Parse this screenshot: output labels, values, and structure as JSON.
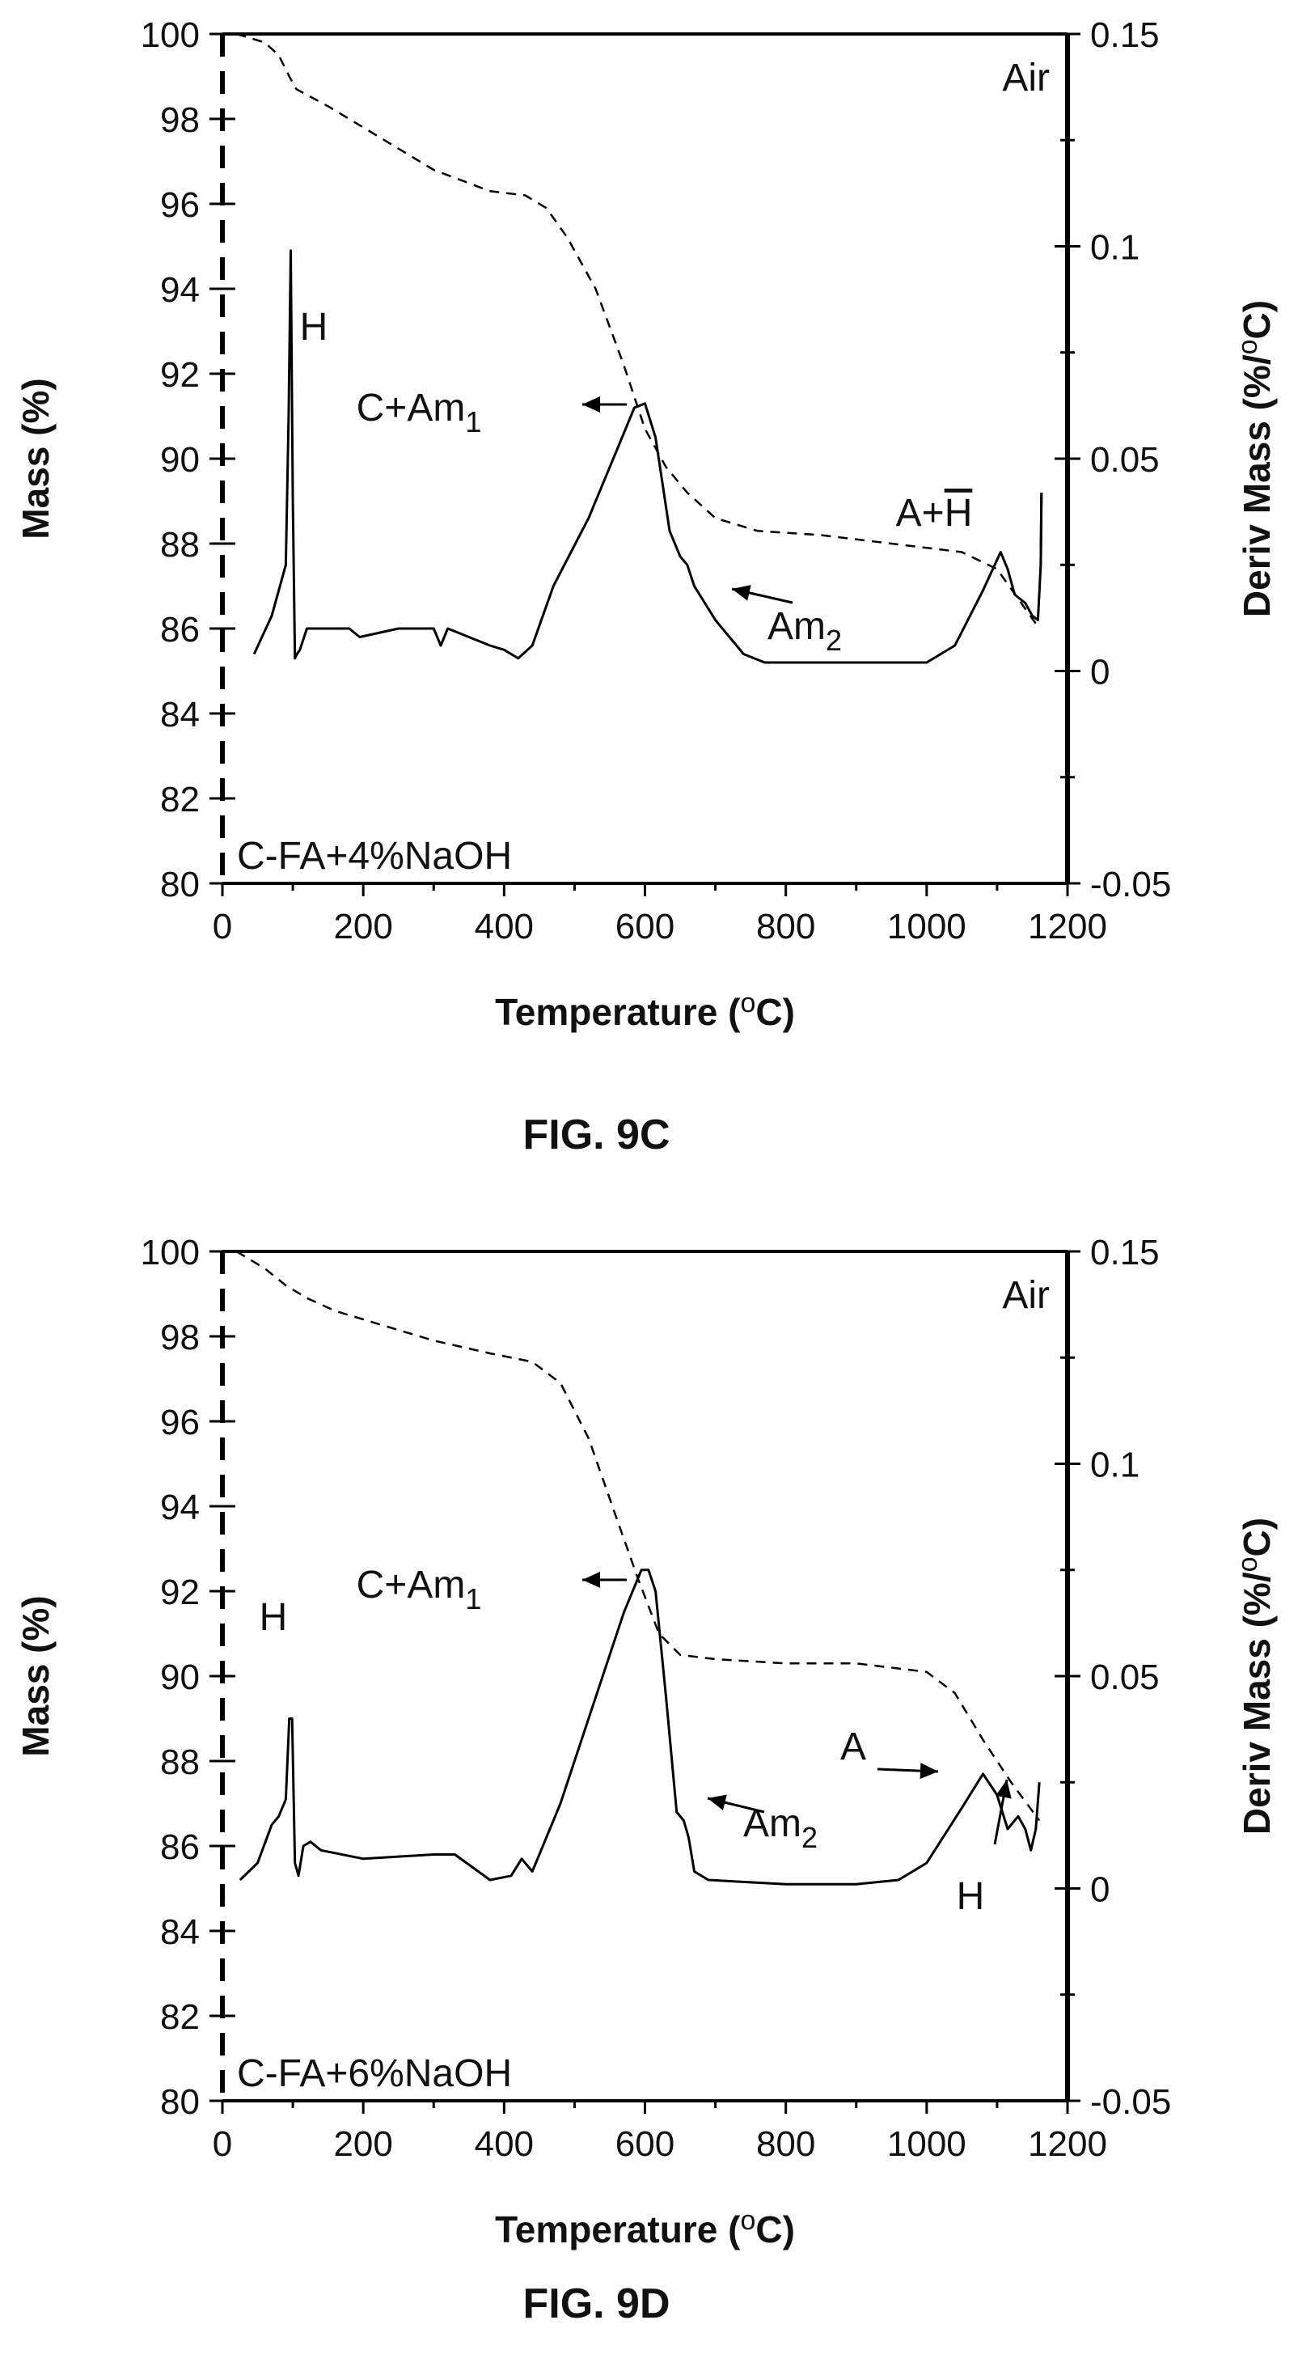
{
  "chart_data": [
    {
      "type": "line",
      "figure_label": "FIG. 9C",
      "xlabel_main": "Temperature (",
      "xlabel_sup": "o",
      "xlabel_end": "C)",
      "ylabel_left": "Mass (%)",
      "ylabel_right_main": "Deriv Mass (%/",
      "ylabel_right_sup": "o",
      "ylabel_right_end": "C)",
      "xlim": [
        0,
        1200
      ],
      "ylim_left": [
        80,
        100
      ],
      "ylim_right": [
        -0.05,
        0.15
      ],
      "xticks": [
        "0",
        "200",
        "400",
        "600",
        "800",
        "1000",
        "1200"
      ],
      "yticks_left": [
        "80",
        "82",
        "84",
        "86",
        "88",
        "90",
        "92",
        "94",
        "96",
        "98",
        "100"
      ],
      "yticks_right": [
        "-0.05",
        "0",
        "0.05",
        "0.1",
        "0.15"
      ],
      "atmosphere": "Air",
      "sample": "C-FA+4%NaOH",
      "annotations": [
        {
          "text": "H",
          "sub": "",
          "x": 135,
          "y": 93.4
        },
        {
          "text": "C+Am",
          "sub": "1",
          "x": 290,
          "y": 91.2
        },
        {
          "text": "Am",
          "sub": "2",
          "x": 830,
          "y": 87.0
        },
        {
          "text": "A+",
          "sub": "",
          "bar": "H",
          "x": 1020,
          "y": 88.5
        }
      ],
      "series": [
        {
          "style": "dashed",
          "axis": "left",
          "x": [
            20,
            60,
            80,
            95,
            105,
            150,
            220,
            300,
            380,
            430,
            460,
            490,
            530,
            570,
            600,
            630,
            660,
            700,
            760,
            850,
            950,
            1050,
            1100,
            1130,
            1160
          ],
          "y": [
            100.0,
            99.8,
            99.5,
            99.0,
            98.7,
            98.3,
            97.6,
            96.8,
            96.3,
            96.2,
            95.9,
            95.2,
            94.0,
            92.2,
            90.7,
            89.8,
            89.2,
            88.6,
            88.3,
            88.2,
            88.0,
            87.8,
            87.4,
            86.7,
            86.0
          ]
        },
        {
          "style": "solid",
          "axis": "right",
          "x": [
            45,
            70,
            90,
            94,
            97,
            100,
            103,
            106,
            110,
            120,
            180,
            195,
            250,
            300,
            310,
            320,
            350,
            380,
            400,
            420,
            440,
            470,
            520,
            560,
            585,
            600,
            615,
            635,
            650,
            660,
            670,
            700,
            740,
            770,
            820,
            900,
            1000,
            1040,
            1080,
            1105,
            1115,
            1125,
            1140,
            1150,
            1158,
            1162,
            1163
          ],
          "y": [
            0.004,
            0.013,
            0.025,
            0.06,
            0.099,
            0.04,
            0.003,
            0.004,
            0.005,
            0.01,
            0.01,
            0.008,
            0.01,
            0.01,
            0.006,
            0.01,
            0.008,
            0.006,
            0.005,
            0.003,
            0.006,
            0.02,
            0.036,
            0.052,
            0.062,
            0.063,
            0.055,
            0.033,
            0.027,
            0.025,
            0.02,
            0.012,
            0.004,
            0.002,
            0.002,
            0.002,
            0.002,
            0.006,
            0.019,
            0.028,
            0.024,
            0.018,
            0.016,
            0.013,
            0.012,
            0.025,
            0.042
          ]
        }
      ]
    },
    {
      "type": "line",
      "figure_label": "FIG. 9D",
      "xlabel_main": "Temperature (",
      "xlabel_sup": "o",
      "xlabel_end": "C)",
      "ylabel_left": "Mass (%)",
      "ylabel_right_main": "Deriv Mass (%/",
      "ylabel_right_sup": "o",
      "ylabel_right_end": "C)",
      "xlim": [
        0,
        1200
      ],
      "ylim_left": [
        80,
        100
      ],
      "ylim_right": [
        -0.05,
        0.15
      ],
      "xticks": [
        "0",
        "200",
        "400",
        "600",
        "800",
        "1000",
        "1200"
      ],
      "yticks_left": [
        "80",
        "82",
        "84",
        "86",
        "88",
        "90",
        "92",
        "94",
        "96",
        "98",
        "100"
      ],
      "yticks_right": [
        "-0.05",
        "0",
        "0.05",
        "0.1",
        "0.15"
      ],
      "atmosphere": "Air",
      "sample": "C-FA+6%NaOH",
      "annotations": [
        {
          "text": "H",
          "sub": "",
          "x": 75,
          "y": 90.8
        },
        {
          "text": "C+Am",
          "sub": "1",
          "x": 290,
          "y": 92.0
        },
        {
          "text": "Am",
          "sub": "2",
          "x": 790,
          "y": 85.6
        },
        {
          "text": "A",
          "sub": "",
          "x": 1000,
          "y": 88.0
        },
        {
          "text": "H",
          "sub": "",
          "x": 1070,
          "y": 83.0
        }
      ],
      "series": [
        {
          "style": "dashed",
          "axis": "left",
          "x": [
            20,
            60,
            90,
            120,
            160,
            220,
            300,
            380,
            440,
            480,
            520,
            560,
            590,
            620,
            650,
            700,
            800,
            900,
            1000,
            1040,
            1080,
            1120,
            1160
          ],
          "y": [
            100.0,
            99.6,
            99.2,
            98.9,
            98.6,
            98.3,
            97.9,
            97.6,
            97.4,
            96.9,
            95.6,
            93.7,
            92.3,
            91.0,
            90.5,
            90.4,
            90.3,
            90.3,
            90.1,
            89.6,
            88.5,
            87.5,
            86.6
          ]
        },
        {
          "style": "solid",
          "axis": "right",
          "x": [
            25,
            50,
            70,
            80,
            90,
            95,
            99,
            103,
            108,
            115,
            125,
            140,
            200,
            300,
            330,
            380,
            410,
            425,
            440,
            480,
            530,
            570,
            595,
            605,
            615,
            630,
            645,
            655,
            662,
            670,
            690,
            800,
            900,
            960,
            1000,
            1050,
            1080,
            1100,
            1115,
            1130,
            1140,
            1148,
            1155,
            1160
          ],
          "y": [
            0.002,
            0.006,
            0.015,
            0.017,
            0.021,
            0.04,
            0.04,
            0.006,
            0.003,
            0.01,
            0.011,
            0.009,
            0.007,
            0.008,
            0.008,
            0.002,
            0.003,
            0.007,
            0.004,
            0.02,
            0.045,
            0.065,
            0.075,
            0.075,
            0.07,
            0.045,
            0.018,
            0.016,
            0.012,
            0.004,
            0.002,
            0.001,
            0.001,
            0.002,
            0.006,
            0.019,
            0.027,
            0.022,
            0.014,
            0.017,
            0.014,
            0.009,
            0.014,
            0.025
          ]
        }
      ]
    }
  ]
}
